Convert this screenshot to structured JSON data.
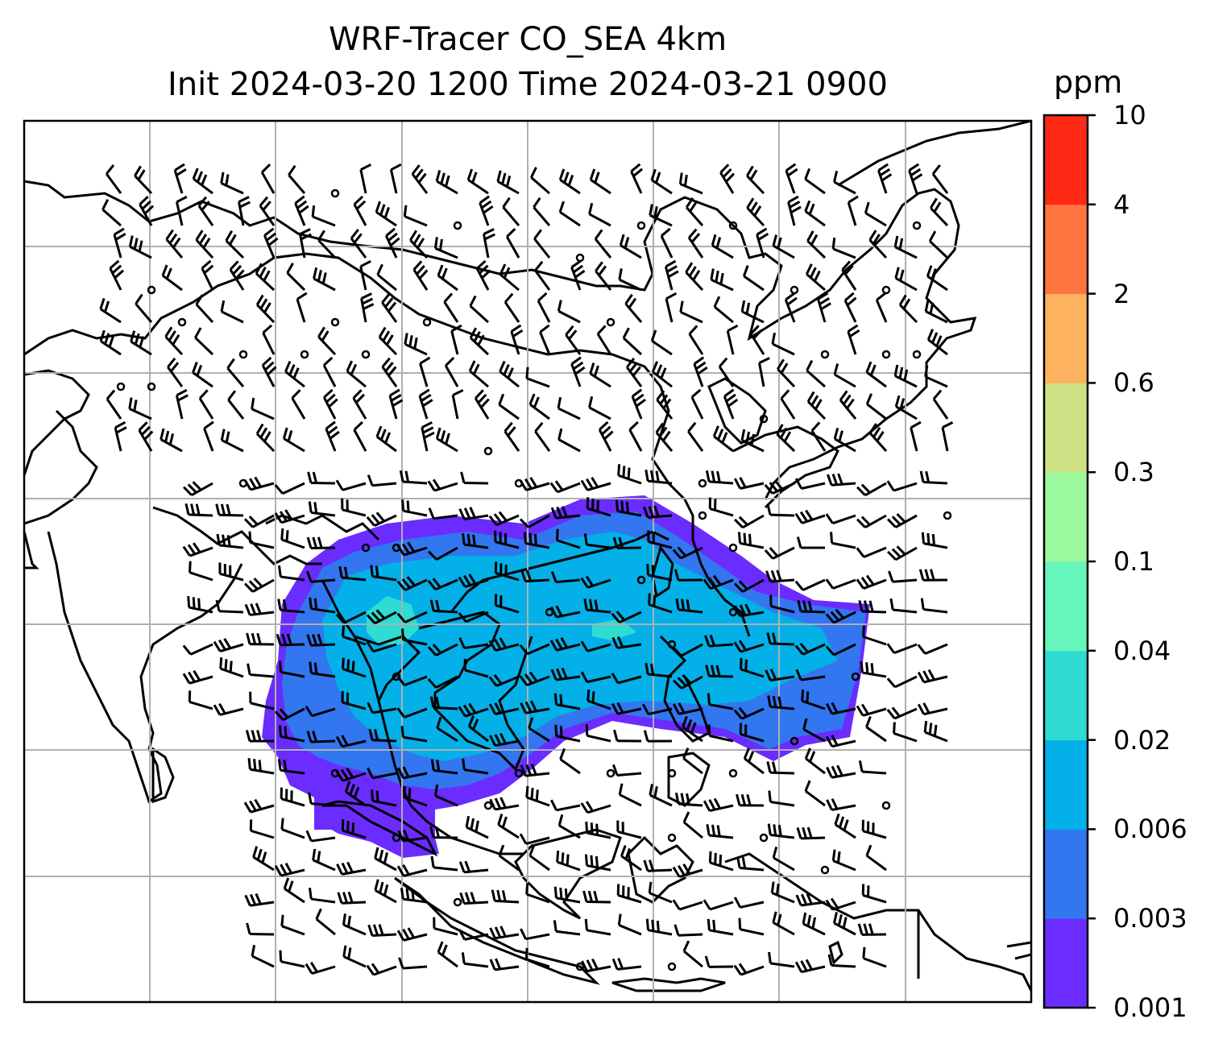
{
  "title": {
    "line1": "WRF-Tracer CO_SEA 4km",
    "line2": "Init 2024-03-20 1200 Time 2024-03-21 0900"
  },
  "colorbar": {
    "unit": "ppm",
    "levels": [
      "0.001",
      "0.003",
      "0.006",
      "0.02",
      "0.04",
      "0.1",
      "0.3",
      "0.6",
      "2",
      "4",
      "10"
    ],
    "colors": [
      "#6a2cff",
      "#3276f0",
      "#03b0e8",
      "#2edcd2",
      "#66f5bb",
      "#9bf89c",
      "#cde084",
      "#fdb25f",
      "#ff7540",
      "#ff2a15"
    ]
  },
  "map": {
    "gridlines": true,
    "wind_barbs": true,
    "concentration_colors": [
      "#6a2cff",
      "#3276f0",
      "#03b0e8",
      "#2edcd2"
    ]
  }
}
